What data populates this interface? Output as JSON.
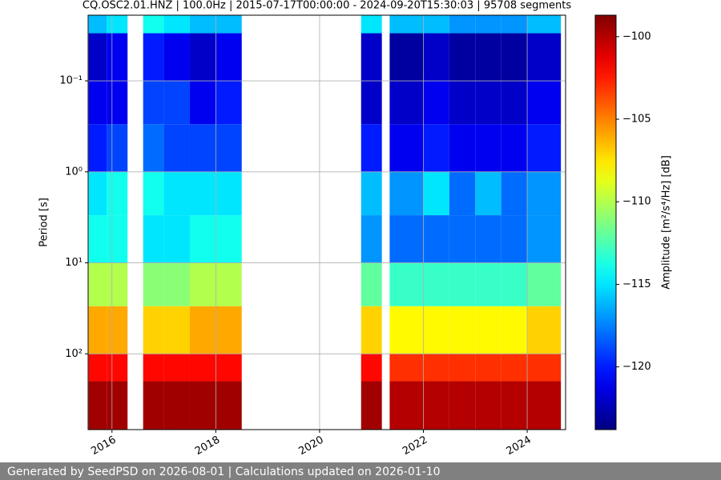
{
  "chart_data": {
    "type": "heatmap",
    "title": "CQ.OSC2.01.HNZ | 100.0Hz | 2015-07-17T00:00:00 - 2024-09-20T15:30:03 | 95708 segments",
    "y_label": "Period [s]",
    "colorbar_label": "Amplitude [m²/s⁴/Hz] [dB]",
    "x_edges": [
      2015.55,
      2015.9,
      2016.3,
      2016.6,
      2017.0,
      2017.5,
      2018.0,
      2018.5,
      2020.8,
      2021.2,
      2021.35,
      2022.0,
      2022.5,
      2023.0,
      2023.5,
      2024.0,
      2024.65
    ],
    "y_edges": [
      0.019,
      0.03,
      0.1,
      0.3,
      1,
      3,
      10,
      30,
      100,
      200,
      680
    ],
    "values": [
      [
        -116,
        -115,
        null,
        -114,
        -115,
        -116,
        -116,
        null,
        -115,
        null,
        -116,
        -116,
        -117,
        -117,
        -117,
        -116
      ],
      [
        -122,
        -121,
        null,
        -120,
        -121,
        -122,
        -121,
        null,
        -122,
        null,
        -123,
        -122,
        -123,
        -123,
        -123,
        -122
      ],
      [
        -121,
        -121,
        null,
        -119,
        -119,
        -121,
        -120,
        null,
        -122,
        null,
        -122,
        -121,
        -122,
        -122,
        -122,
        -121
      ],
      [
        -120,
        -119,
        null,
        -118,
        -119,
        -119,
        -119,
        null,
        -120,
        null,
        -121,
        -120,
        -121,
        -121,
        -121,
        -120
      ],
      [
        -115,
        -114,
        null,
        -114,
        -115,
        -115,
        -115,
        null,
        -116,
        null,
        -117,
        -115,
        -118,
        -116,
        -118,
        -117
      ],
      [
        -114,
        -114,
        null,
        -115,
        -115,
        -114,
        -114,
        null,
        -117,
        null,
        -118,
        -118,
        -118,
        -118,
        -118,
        -117
      ],
      [
        -110,
        -110,
        null,
        -111,
        -111,
        -110,
        -110,
        null,
        -112,
        null,
        -113,
        -113,
        -113,
        -113,
        -113,
        -112
      ],
      [
        -106,
        -106,
        null,
        -107,
        -107,
        -106,
        -106,
        null,
        -107,
        null,
        -108,
        -108,
        -108,
        -108,
        -108,
        -107
      ],
      [
        -102,
        -102,
        null,
        -102,
        -102,
        -102,
        -102,
        null,
        -102,
        null,
        -103,
        -103,
        -103,
        -103,
        -103,
        -103
      ],
      [
        -99.5,
        -99.5,
        null,
        -99.5,
        -99.5,
        -99.5,
        -99.5,
        null,
        -99.5,
        null,
        -100,
        -100,
        -100,
        -100,
        -100,
        -100
      ]
    ],
    "xlim": [
      2015.54,
      2024.74
    ],
    "xticks": [
      2016,
      2018,
      2020,
      2022,
      2024
    ],
    "ylim": [
      0.019,
      680
    ],
    "log_y": true,
    "yticks": [
      {
        "value": 0.1,
        "label": "10⁻¹"
      },
      {
        "value": 1,
        "label": "10⁰"
      },
      {
        "value": 10,
        "label": "10¹"
      },
      {
        "value": 100,
        "label": "10²"
      }
    ],
    "zlim": [
      -123.8,
      -98.7
    ],
    "zticks": [
      {
        "value": -100,
        "label": "−100"
      },
      {
        "value": -105,
        "label": "−105"
      },
      {
        "value": -110,
        "label": "−110"
      },
      {
        "value": -115,
        "label": "−115"
      },
      {
        "value": -120,
        "label": "−120"
      }
    ],
    "colormap": "jet",
    "grid": true
  },
  "footer": "Generated by SeedPSD on 2026-08-01 | Calculations updated on 2026-01-10"
}
